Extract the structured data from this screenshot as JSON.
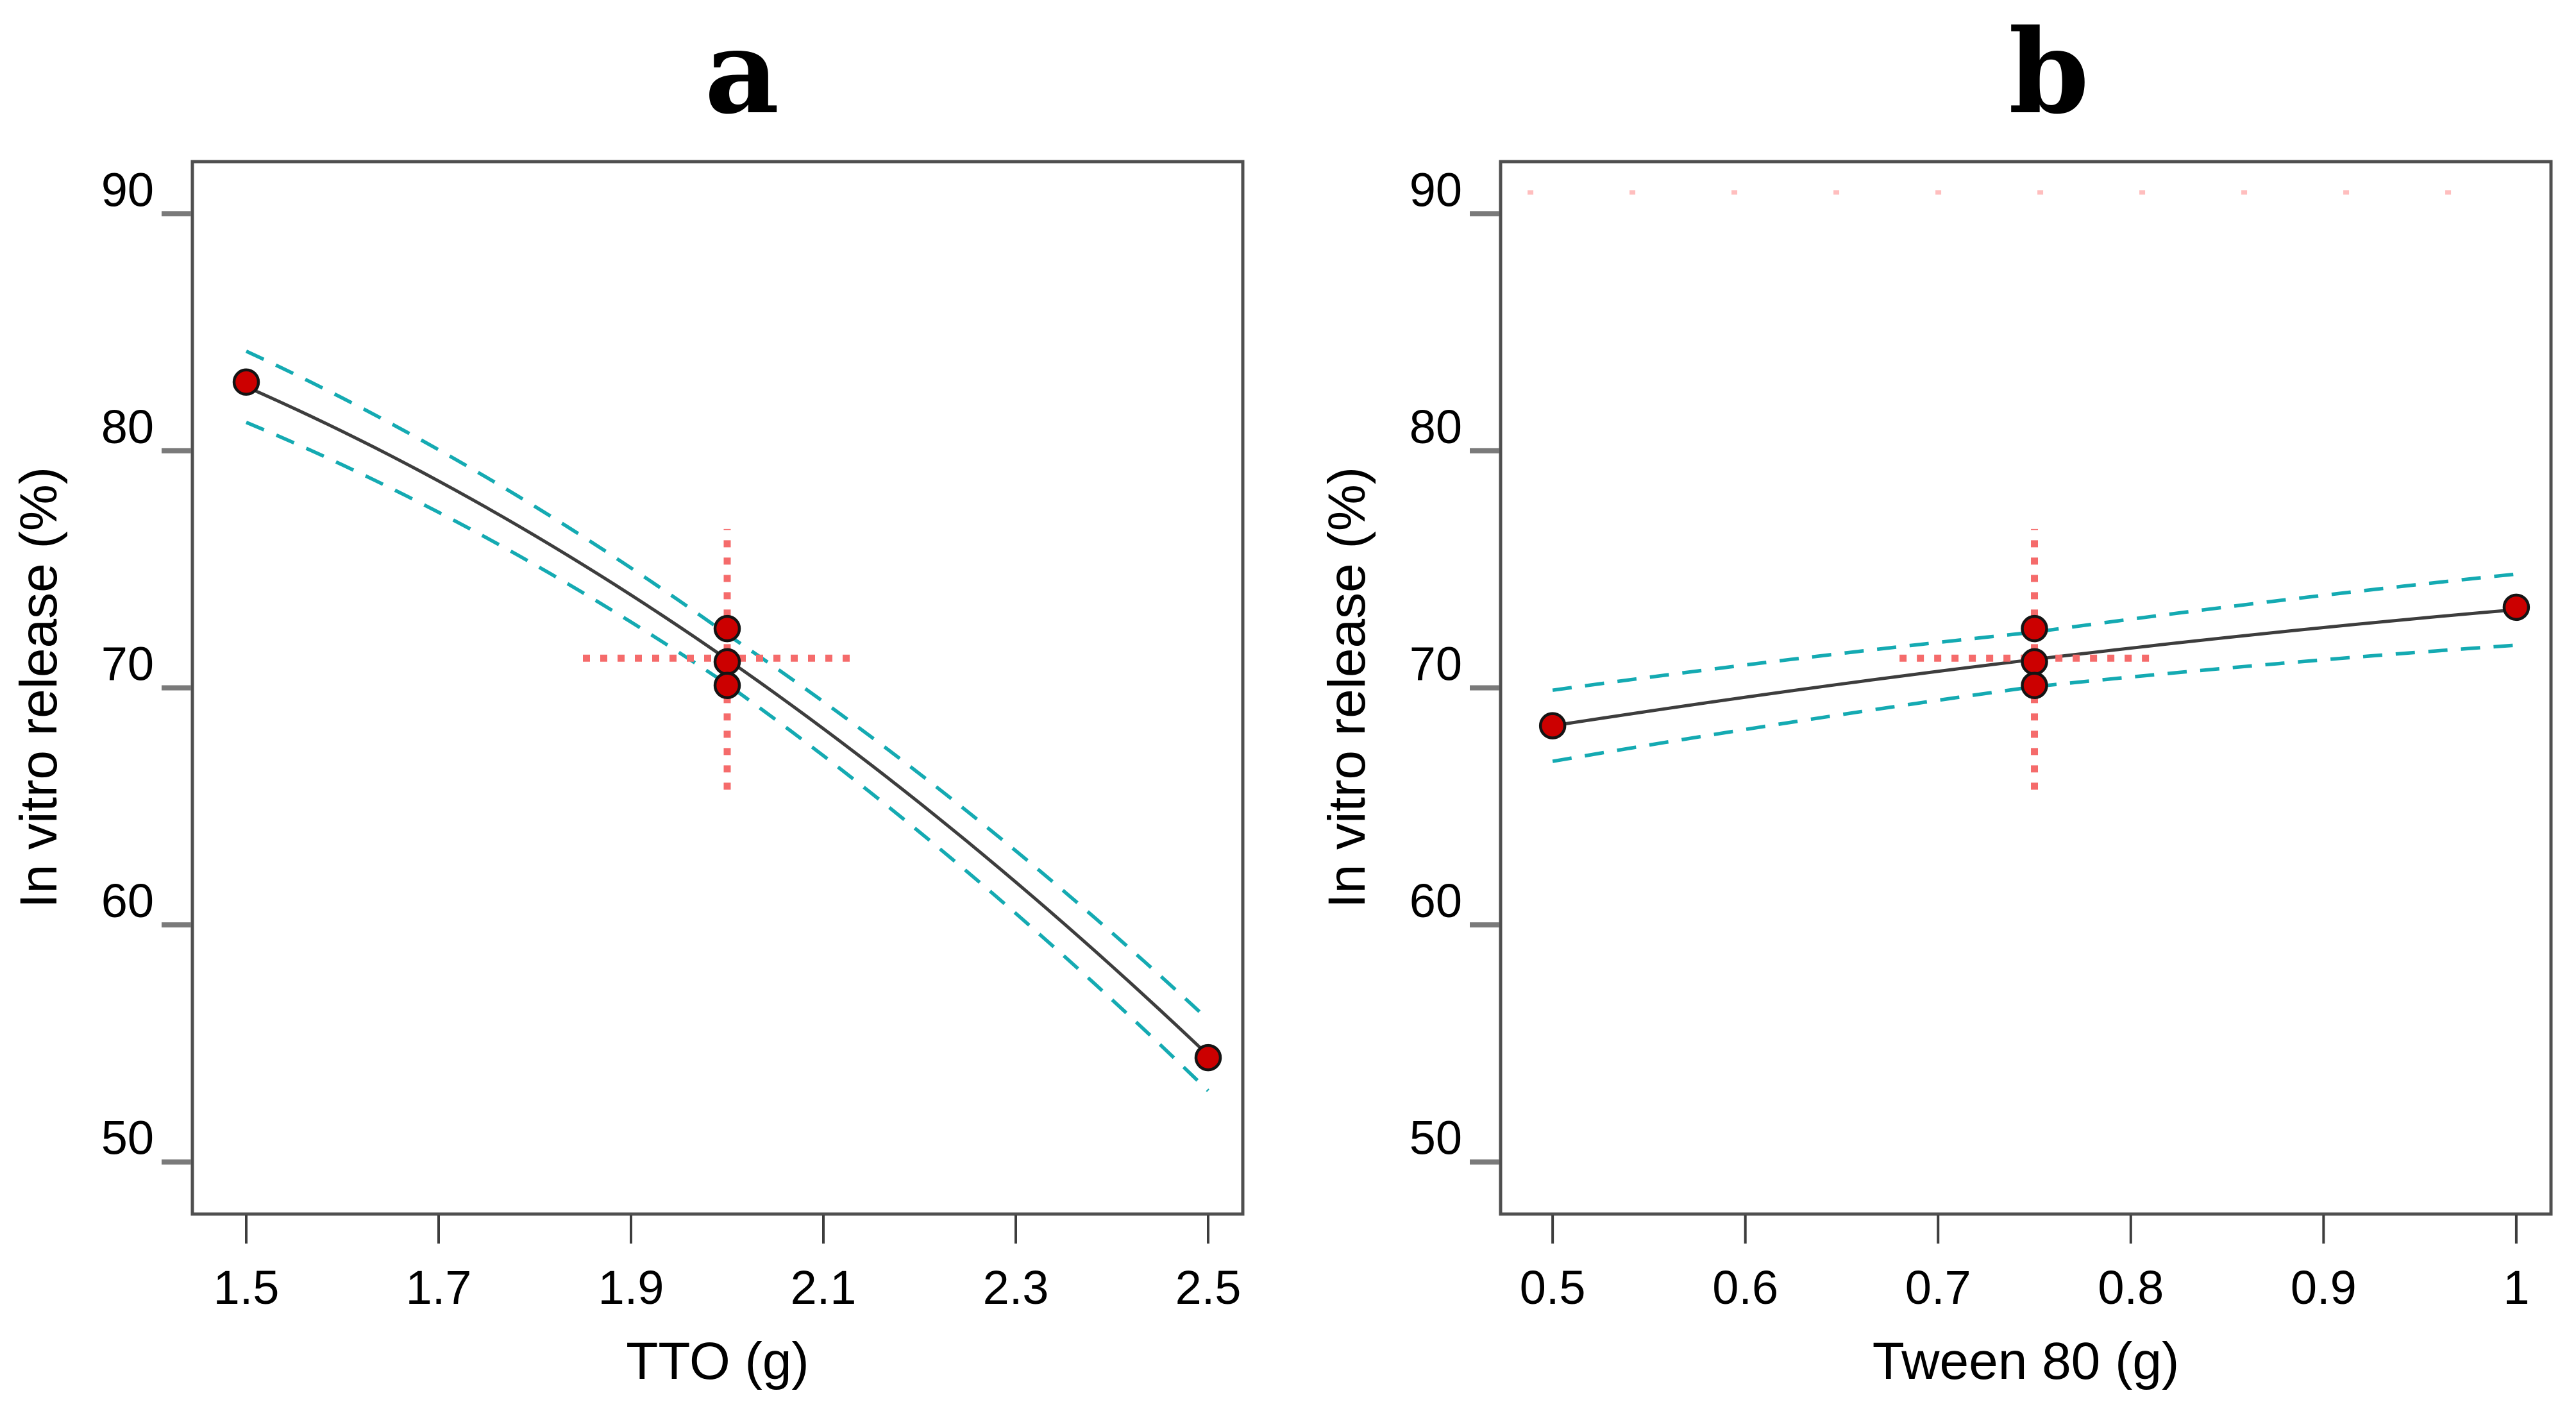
{
  "figure": {
    "background": "#ffffff",
    "panel_count": 2
  },
  "colors": {
    "point_fill": "#cc0000",
    "point_stroke": "#141414",
    "fit_line": "#3d3d3d",
    "confidence_band": "#14aab2",
    "crosshair": "#f56b6b",
    "faint_reference": "#ffb3b3",
    "plot_border": "#4f4f4f",
    "x_tick": "#3d3d3d",
    "y_tick": "#7a7a7a",
    "text": "#000000"
  },
  "chart_data": [
    {
      "panel_letter": "a",
      "type": "scatter",
      "xlabel": "TTO (g)",
      "ylabel": "In vitro release (%)",
      "xlim": [
        1.444,
        2.536
      ],
      "ylim": [
        47.8,
        92.2
      ],
      "xticks": [
        1.5,
        1.7,
        1.9,
        2.1,
        2.3,
        2.5
      ],
      "xtick_labels": [
        "1.5",
        "1.7",
        "1.9",
        "2.1",
        "2.3",
        "2.5"
      ],
      "yticks": [
        50,
        60,
        70,
        80,
        90
      ],
      "ytick_labels": [
        "50",
        "60",
        "70",
        "80",
        "90"
      ],
      "grid": false,
      "legend": null,
      "points": [
        [
          1.5,
          82.9
        ],
        [
          2.0,
          72.5
        ],
        [
          2.0,
          71.1
        ],
        [
          2.0,
          70.1
        ],
        [
          2.5,
          54.4
        ]
      ],
      "fit_line": {
        "x": [
          1.5,
          2.0,
          2.5
        ],
        "y": [
          82.7,
          71.2,
          54.5
        ]
      },
      "ci_band_halfwidth": {
        "ends": 1.5,
        "center": 1.05
      },
      "crosshair": {
        "x": 2.0,
        "y": 71.25,
        "v_extent": [
          65.7,
          76.7
        ],
        "h_extent": [
          1.85,
          2.13
        ]
      }
    },
    {
      "panel_letter": "b",
      "type": "scatter",
      "xlabel": "Tween 80 (g)",
      "ylabel": "In vitro release (%)",
      "xlim": [
        0.473,
        1.018
      ],
      "ylim": [
        47.8,
        92.2
      ],
      "xticks": [
        0.5,
        0.6,
        0.7,
        0.8,
        0.9,
        1
      ],
      "xtick_labels": [
        "0.5",
        "0.6",
        "0.7",
        "0.8",
        "0.9",
        "1"
      ],
      "yticks": [
        50,
        60,
        70,
        80,
        90
      ],
      "ytick_labels": [
        "50",
        "60",
        "70",
        "80",
        "90"
      ],
      "grid": false,
      "legend": null,
      "points": [
        [
          0.5,
          68.4
        ],
        [
          0.75,
          72.5
        ],
        [
          0.75,
          71.1
        ],
        [
          0.75,
          70.1
        ],
        [
          1.0,
          73.4
        ]
      ],
      "fit_line": {
        "x": [
          0.5,
          0.75,
          1.0
        ],
        "y": [
          68.4,
          71.2,
          73.3
        ]
      },
      "ci_band_halfwidth": {
        "ends": 1.5,
        "center": 1.15
      },
      "crosshair": {
        "x": 0.75,
        "y": 71.25,
        "v_extent": [
          65.7,
          76.7
        ],
        "h_extent": [
          0.68,
          0.81
        ]
      },
      "faint_top_line": {
        "y": 90.9,
        "x_extent": [
          0.487,
          1.005
        ]
      }
    }
  ]
}
